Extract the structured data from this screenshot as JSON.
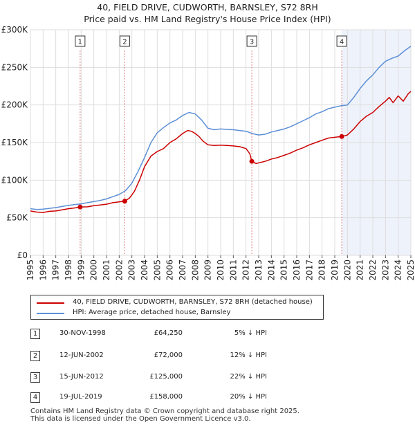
{
  "chart_data": {
    "type": "line",
    "title": "40, FIELD DRIVE, CUDWORTH, BARNSLEY, S72 8RH",
    "subtitle": "Price paid vs. HM Land Registry's House Price Index (HPI)",
    "xlim": [
      1995,
      2025
    ],
    "ylim": [
      0,
      300000
    ],
    "x_ticks": [
      "1995",
      "1996",
      "1997",
      "1998",
      "1999",
      "2000",
      "2001",
      "2002",
      "2003",
      "2004",
      "2005",
      "2006",
      "2007",
      "2008",
      "2009",
      "2010",
      "2011",
      "2012",
      "2013",
      "2014",
      "2015",
      "2016",
      "2017",
      "2018",
      "2019",
      "2020",
      "2021",
      "2022",
      "2023",
      "2024",
      "2025"
    ],
    "y_ticks": [
      {
        "value": 0,
        "label": "£0"
      },
      {
        "value": 50000,
        "label": "£50K"
      },
      {
        "value": 100000,
        "label": "£100K"
      },
      {
        "value": 150000,
        "label": "£150K"
      },
      {
        "value": 200000,
        "label": "£200K"
      },
      {
        "value": 250000,
        "label": "£250K"
      },
      {
        "value": 300000,
        "label": "£300K"
      }
    ],
    "grid": true,
    "series": [
      {
        "name": "40, FIELD DRIVE, CUDWORTH, BARNSLEY, S72 8RH (detached house)",
        "color": "#cc0000",
        "points": [
          [
            1995,
            59000
          ],
          [
            1995.5,
            57500
          ],
          [
            1996,
            57000
          ],
          [
            1996.5,
            58500
          ],
          [
            1997,
            59000
          ],
          [
            1997.5,
            60500
          ],
          [
            1998,
            62000
          ],
          [
            1998.5,
            63000
          ],
          [
            1998.92,
            64250
          ],
          [
            1999.5,
            64500
          ],
          [
            2000,
            66000
          ],
          [
            2000.5,
            67000
          ],
          [
            2001,
            68000
          ],
          [
            2001.5,
            70000
          ],
          [
            2002,
            71000
          ],
          [
            2002.44,
            72000
          ],
          [
            2002.8,
            76000
          ],
          [
            2003.2,
            85000
          ],
          [
            2003.6,
            100000
          ],
          [
            2004,
            118000
          ],
          [
            2004.5,
            132000
          ],
          [
            2005,
            138000
          ],
          [
            2005.5,
            142000
          ],
          [
            2006,
            150000
          ],
          [
            2006.5,
            155000
          ],
          [
            2007,
            162000
          ],
          [
            2007.4,
            166000
          ],
          [
            2007.7,
            165000
          ],
          [
            2008,
            162000
          ],
          [
            2008.3,
            158000
          ],
          [
            2008.6,
            152000
          ],
          [
            2009,
            147000
          ],
          [
            2009.5,
            146000
          ],
          [
            2010,
            146500
          ],
          [
            2010.5,
            146000
          ],
          [
            2011,
            145500
          ],
          [
            2011.5,
            144500
          ],
          [
            2012,
            142000
          ],
          [
            2012.3,
            135000
          ],
          [
            2012.46,
            125000
          ],
          [
            2012.8,
            122000
          ],
          [
            2013,
            123000
          ],
          [
            2013.5,
            125000
          ],
          [
            2014,
            128000
          ],
          [
            2014.5,
            130000
          ],
          [
            2015,
            133000
          ],
          [
            2015.5,
            136000
          ],
          [
            2016,
            140000
          ],
          [
            2016.5,
            143000
          ],
          [
            2017,
            147000
          ],
          [
            2017.5,
            150000
          ],
          [
            2018,
            153000
          ],
          [
            2018.5,
            156000
          ],
          [
            2019,
            157000
          ],
          [
            2019.55,
            158000
          ],
          [
            2020,
            160000
          ],
          [
            2020.5,
            168000
          ],
          [
            2021,
            178000
          ],
          [
            2021.5,
            185000
          ],
          [
            2022,
            190000
          ],
          [
            2022.5,
            198000
          ],
          [
            2023,
            205000
          ],
          [
            2023.3,
            210000
          ],
          [
            2023.6,
            203000
          ],
          [
            2024,
            212000
          ],
          [
            2024.4,
            205000
          ],
          [
            2024.8,
            215000
          ],
          [
            2025,
            218000
          ]
        ]
      },
      {
        "name": "HPI: Average price, detached house, Barnsley",
        "color": "#5b8fd6",
        "points": [
          [
            1995,
            62000
          ],
          [
            1995.5,
            61000
          ],
          [
            1996,
            61500
          ],
          [
            1996.5,
            62500
          ],
          [
            1997,
            63500
          ],
          [
            1997.5,
            65000
          ],
          [
            1998,
            66500
          ],
          [
            1998.5,
            67500
          ],
          [
            1999,
            68500
          ],
          [
            1999.5,
            70000
          ],
          [
            2000,
            71500
          ],
          [
            2000.5,
            73000
          ],
          [
            2001,
            75000
          ],
          [
            2001.5,
            78000
          ],
          [
            2002,
            81000
          ],
          [
            2002.5,
            86000
          ],
          [
            2003,
            96000
          ],
          [
            2003.5,
            112000
          ],
          [
            2004,
            130000
          ],
          [
            2004.5,
            150000
          ],
          [
            2005,
            163000
          ],
          [
            2005.5,
            170000
          ],
          [
            2006,
            176000
          ],
          [
            2006.5,
            180000
          ],
          [
            2007,
            186000
          ],
          [
            2007.5,
            190000
          ],
          [
            2008,
            188000
          ],
          [
            2008.5,
            180000
          ],
          [
            2009,
            169000
          ],
          [
            2009.5,
            167000
          ],
          [
            2010,
            168000
          ],
          [
            2010.5,
            167500
          ],
          [
            2011,
            167000
          ],
          [
            2011.5,
            166000
          ],
          [
            2012,
            165000
          ],
          [
            2012.5,
            162000
          ],
          [
            2013,
            160000
          ],
          [
            2013.5,
            161000
          ],
          [
            2014,
            164000
          ],
          [
            2014.5,
            166000
          ],
          [
            2015,
            168000
          ],
          [
            2015.5,
            171000
          ],
          [
            2016,
            175000
          ],
          [
            2016.5,
            179000
          ],
          [
            2017,
            183000
          ],
          [
            2017.5,
            188000
          ],
          [
            2018,
            191000
          ],
          [
            2018.5,
            195000
          ],
          [
            2019,
            197000
          ],
          [
            2019.5,
            199000
          ],
          [
            2020,
            200000
          ],
          [
            2020.5,
            210000
          ],
          [
            2021,
            222000
          ],
          [
            2021.5,
            232000
          ],
          [
            2022,
            240000
          ],
          [
            2022.5,
            250000
          ],
          [
            2023,
            258000
          ],
          [
            2023.5,
            262000
          ],
          [
            2024,
            265000
          ],
          [
            2024.5,
            272000
          ],
          [
            2025,
            278000
          ]
        ]
      }
    ],
    "sales": [
      {
        "marker": "1",
        "date": "30-NOV-1998",
        "x": 1998.92,
        "price_value": 64250,
        "price": "£64,250",
        "hpi": "5% ↓ HPI"
      },
      {
        "marker": "2",
        "date": "12-JUN-2002",
        "x": 2002.44,
        "price_value": 72000,
        "price": "£72,000",
        "hpi": "12% ↓ HPI"
      },
      {
        "marker": "3",
        "date": "15-JUN-2012",
        "x": 2012.46,
        "price_value": 125000,
        "price": "£125,000",
        "hpi": "22% ↓ HPI"
      },
      {
        "marker": "4",
        "date": "19-JUL-2019",
        "x": 2019.55,
        "price_value": 158000,
        "price": "£158,000",
        "hpi": "20% ↓ HPI"
      }
    ]
  },
  "legend": {
    "property_label": "40, FIELD DRIVE, CUDWORTH, BARNSLEY, S72 8RH (detached house)",
    "hpi_label": "HPI: Average price, detached house, Barnsley",
    "property_color": "#cc0000",
    "hpi_color": "#5b8fd6"
  },
  "footer": {
    "line1": "Contains HM Land Registry data © Crown copyright and database right 2025.",
    "line2": "This data is licensed under the Open Government Licence v3.0."
  }
}
